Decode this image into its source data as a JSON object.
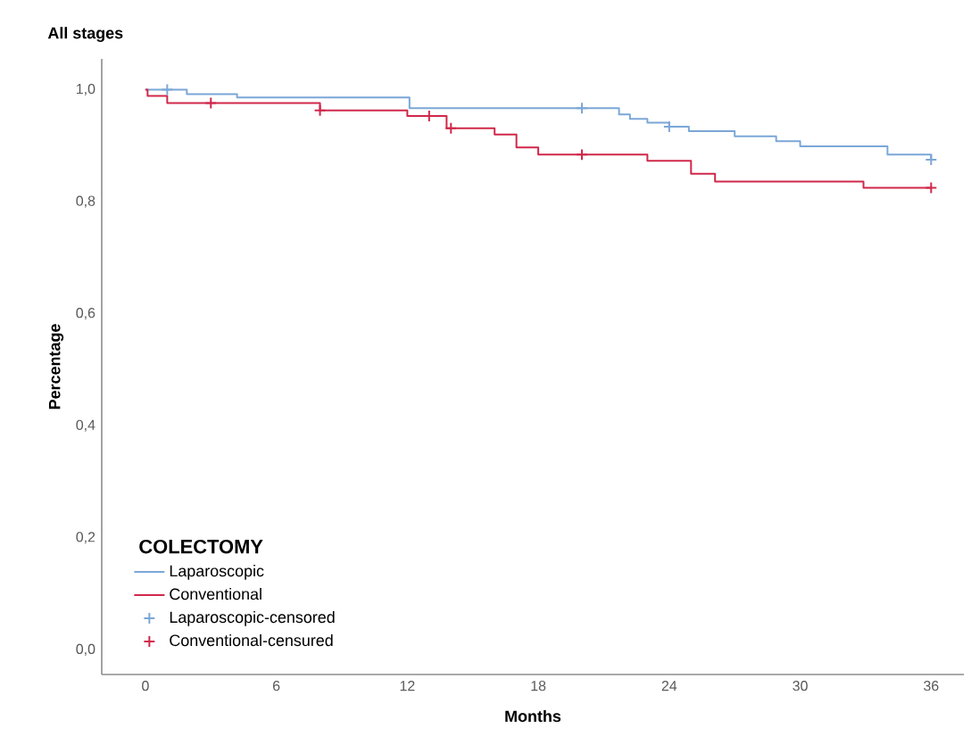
{
  "chart_data": {
    "type": "step",
    "title": "All stages",
    "xlabel": "Months",
    "ylabel": "Percentage",
    "legend_title": "COLECTOMY",
    "legend": "bottom left",
    "xlim": [
      -2,
      37.5
    ],
    "ylim": [
      -0.044,
      1.055
    ],
    "xticks": [
      0,
      6,
      12,
      18,
      24,
      30,
      36
    ],
    "yticks": [
      {
        "value": 0,
        "label": "0,0"
      },
      {
        "value": 0.2,
        "label": "0,2"
      },
      {
        "value": 0.4,
        "label": "0,4"
      },
      {
        "value": 0.6,
        "label": "0,6"
      },
      {
        "value": 0.8,
        "label": "0,8"
      },
      {
        "value": 1,
        "label": "1,0"
      }
    ],
    "series": [
      {
        "name": "Laparoscopic",
        "color": "#7ba7d7",
        "x": [
          0,
          1.9,
          4.2,
          12.1,
          21.7,
          22.2,
          23,
          24,
          24.9,
          27,
          28.9,
          30,
          34,
          36
        ],
        "values": [
          1.0,
          0.992,
          0.986,
          0.967,
          0.956,
          0.948,
          0.941,
          0.934,
          0.926,
          0.917,
          0.908,
          0.899,
          0.884,
          0.875
        ]
      },
      {
        "name": "Conventional",
        "color": "#d0284a",
        "x": [
          0,
          0.1,
          1,
          8,
          12,
          13.8,
          16,
          17,
          18,
          23,
          25,
          26.1,
          32.9,
          36
        ],
        "values": [
          1.0,
          0.989,
          0.976,
          0.963,
          0.953,
          0.931,
          0.92,
          0.897,
          0.884,
          0.873,
          0.85,
          0.836,
          0.825,
          0.825
        ]
      },
      {
        "name": "Laparoscopic-censored",
        "type": "scatter",
        "marker": "cross",
        "color": "#7ba7d7",
        "x": [
          1,
          20,
          24,
          36
        ],
        "values": [
          1.0,
          0.967,
          0.934,
          0.875
        ]
      },
      {
        "name": "Conventional-censured",
        "type": "scatter",
        "marker": "cross",
        "color": "#d0284a",
        "x": [
          3,
          8,
          13,
          14,
          20,
          36
        ],
        "values": [
          0.976,
          0.963,
          0.953,
          0.931,
          0.884,
          0.825
        ]
      }
    ]
  }
}
